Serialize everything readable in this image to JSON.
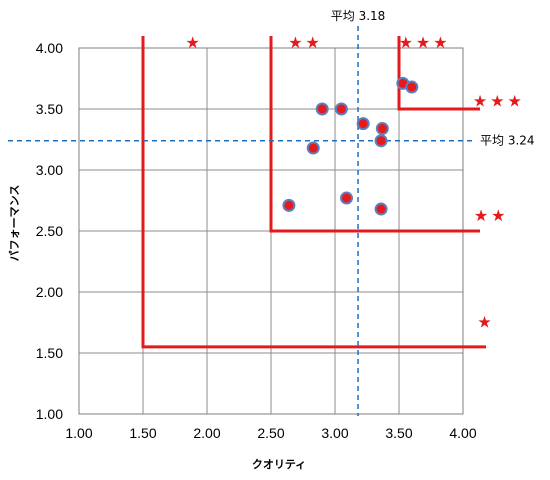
{
  "chart_data": {
    "type": "scatter",
    "xlabel": "クオリティ",
    "ylabel": "パフォーマンス",
    "xlim": [
      1.0,
      4.0
    ],
    "ylim": [
      1.0,
      4.0
    ],
    "x_ticks": [
      "1.00",
      "1.50",
      "2.00",
      "2.50",
      "3.00",
      "3.50",
      "4.00"
    ],
    "y_ticks": [
      "1.00",
      "1.50",
      "2.00",
      "2.50",
      "3.00",
      "3.50",
      "4.00"
    ],
    "x_tick_values": [
      1.0,
      1.5,
      2.0,
      2.5,
      3.0,
      3.5,
      4.0
    ],
    "y_tick_values": [
      1.0,
      1.5,
      2.0,
      2.5,
      3.0,
      3.5,
      4.0
    ],
    "grid": true,
    "points": [
      {
        "x": 3.53,
        "y": 3.71
      },
      {
        "x": 3.6,
        "y": 3.68
      },
      {
        "x": 2.9,
        "y": 3.5
      },
      {
        "x": 3.05,
        "y": 3.5
      },
      {
        "x": 3.22,
        "y": 3.38
      },
      {
        "x": 3.37,
        "y": 3.34
      },
      {
        "x": 3.36,
        "y": 3.24
      },
      {
        "x": 2.83,
        "y": 3.18
      },
      {
        "x": 3.09,
        "y": 2.77
      },
      {
        "x": 2.64,
        "y": 2.71
      },
      {
        "x": 3.36,
        "y": 2.68
      }
    ],
    "marker_color": "#e41a1c",
    "marker_edge_color": "#5b7fbf",
    "averages": {
      "x": {
        "value": 3.18,
        "label": "平均 3.18"
      },
      "y": {
        "value": 3.24,
        "label": "平均 3.24"
      }
    },
    "zone_color": "#e41a1c",
    "average_line_color": "#1f6fbf",
    "zones": [
      {
        "stars": "★",
        "x_min": 1.5,
        "y_min": 1.55
      },
      {
        "stars": "★★",
        "x_min": 2.5,
        "y_min": 2.5
      },
      {
        "stars": "★★★",
        "x_min": 3.5,
        "y_min": 3.5
      }
    ],
    "star_labels": [
      {
        "text": "★",
        "x": 1.9,
        "y": 4.05
      },
      {
        "text": "★★",
        "x": 2.77,
        "y": 4.05
      },
      {
        "text": "★★★",
        "x": 3.7,
        "y": 4.05
      },
      {
        "text": "★★★",
        "x": 4.28,
        "y": 3.57
      },
      {
        "text": "★★",
        "x": 4.22,
        "y": 2.63
      },
      {
        "text": "★",
        "x": 4.18,
        "y": 1.76
      }
    ]
  }
}
